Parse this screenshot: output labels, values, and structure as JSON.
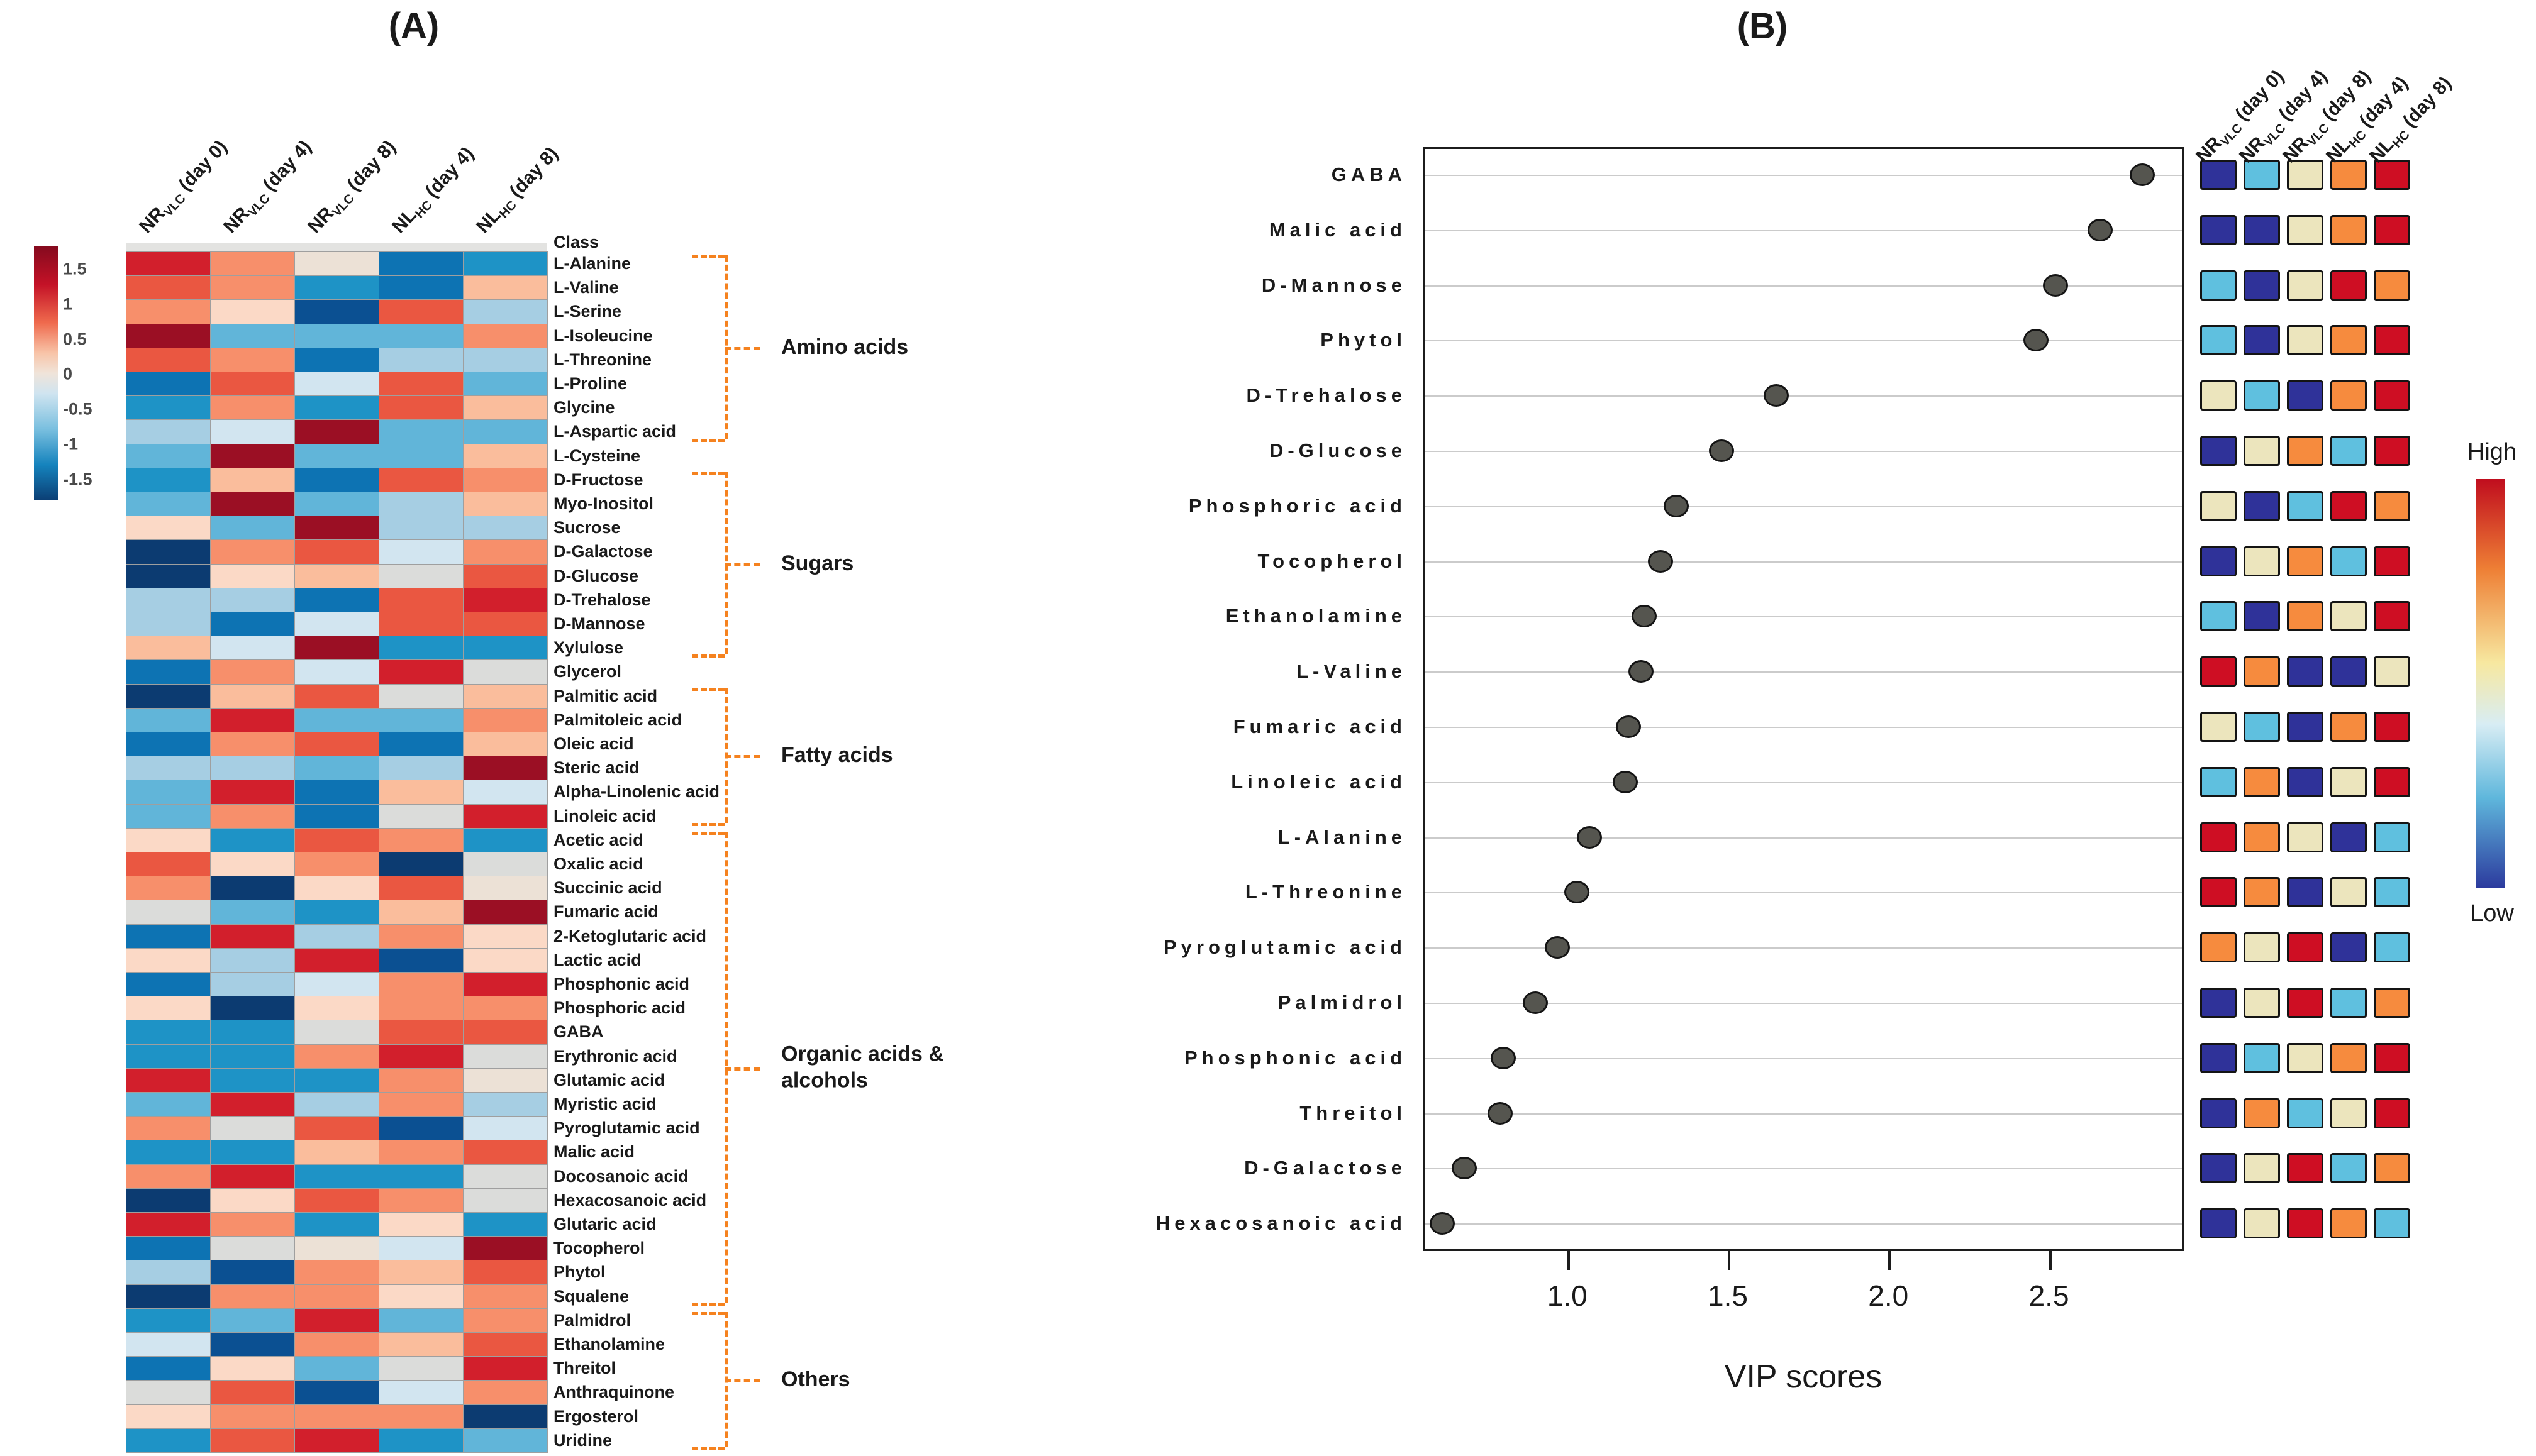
{
  "chart_data": [
    {
      "type": "heatmap",
      "title": "(A)",
      "columns": [
        {
          "prefix": "NR",
          "sub": "VLC",
          "day": "(day 0)"
        },
        {
          "prefix": "NR",
          "sub": "VLC",
          "day": "(day 4)"
        },
        {
          "prefix": "NR",
          "sub": "VLC",
          "day": "(day 8)"
        },
        {
          "prefix": "NL",
          "sub": "HC",
          "day": "(day 4)"
        },
        {
          "prefix": "NL",
          "sub": "HC",
          "day": "(day 8)"
        }
      ],
      "class_row_label": "Class",
      "colorbar_ticks": [
        "1.5",
        "1",
        "0.5",
        "0",
        "-0.5",
        "-1",
        "-1.5"
      ],
      "colorbar_range": [
        1.5,
        -1.5
      ],
      "palette": {
        "M": "#9b0f24",
        "R": "#d21f2c",
        "O": "#ea5741",
        "S": "#f78f6b",
        "P": "#fabd9c",
        "Q": "#fbd9c6",
        "C": "#ece1d6",
        "G": "#dbdcda",
        "U": "#d2e5f0",
        "L": "#a6cee3",
        "K": "#61b5d9",
        "T": "#1e93c6",
        "B": "#0d73b3",
        "D": "#0b5092",
        "N": "#0c3b71"
      },
      "rows": [
        {
          "name": "L-Alanine",
          "cells": "RSCBT"
        },
        {
          "name": "L-Valine",
          "cells": "OSTBP"
        },
        {
          "name": "L-Serine",
          "cells": "SQDOL"
        },
        {
          "name": "L-Isoleucine",
          "cells": "MKKKS"
        },
        {
          "name": "L-Threonine",
          "cells": "OSBLL"
        },
        {
          "name": "L-Proline",
          "cells": "BOUOK"
        },
        {
          "name": "Glycine",
          "cells": "TSTOP"
        },
        {
          "name": "L-Aspartic acid",
          "cells": "LUMKK"
        },
        {
          "name": "L-Cysteine",
          "cells": "KMKKP"
        },
        {
          "name": "D-Fructose",
          "cells": "TPBOS"
        },
        {
          "name": "Myo-Inositol",
          "cells": "KMKLP"
        },
        {
          "name": "Sucrose",
          "cells": "QKMLL"
        },
        {
          "name": "D-Galactose",
          "cells": "NSOUS"
        },
        {
          "name": "D-Glucose",
          "cells": "NQPGO"
        },
        {
          "name": "D-Trehalose",
          "cells": "LLBOR"
        },
        {
          "name": "D-Mannose",
          "cells": "LBUOO"
        },
        {
          "name": "Xylulose",
          "cells": "PUMTT"
        },
        {
          "name": "Glycerol",
          "cells": "BSURG"
        },
        {
          "name": "Palmitic acid",
          "cells": "NPOGP"
        },
        {
          "name": "Palmitoleic acid",
          "cells": "KRKKS"
        },
        {
          "name": "Oleic acid",
          "cells": "BSOBP"
        },
        {
          "name": "Steric acid",
          "cells": "LLKLM"
        },
        {
          "name": "Alpha-Linolenic acid",
          "cells": "KRBPU"
        },
        {
          "name": "Linoleic acid",
          "cells": "KSBGR"
        },
        {
          "name": "Acetic acid",
          "cells": "QTOST"
        },
        {
          "name": "Oxalic acid",
          "cells": "OQSNG"
        },
        {
          "name": "Succinic acid",
          "cells": "SNQOC"
        },
        {
          "name": "Fumaric acid",
          "cells": "GKTPM"
        },
        {
          "name": "2-Ketoglutaric acid",
          "cells": "BRLSQ"
        },
        {
          "name": "Lactic acid",
          "cells": "QLRDQ"
        },
        {
          "name": "Phosphonic acid",
          "cells": "BLUSR"
        },
        {
          "name": "Phosphoric acid",
          "cells": "QNQSS"
        },
        {
          "name": "GABA",
          "cells": "TTGOO"
        },
        {
          "name": "Erythronic acid",
          "cells": "TTSRG"
        },
        {
          "name": "Glutamic acid",
          "cells": "RTTSC"
        },
        {
          "name": "Myristic acid",
          "cells": "KRLSL"
        },
        {
          "name": "Pyroglutamic acid",
          "cells": "SGODU"
        },
        {
          "name": "Malic acid",
          "cells": "TTPSO"
        },
        {
          "name": "Docosanoic acid",
          "cells": "SRTTG"
        },
        {
          "name": "Hexacosanoic acid",
          "cells": "NQOSG"
        },
        {
          "name": "Glutaric acid",
          "cells": "RSTQT"
        },
        {
          "name": "Tocopherol",
          "cells": "BGCUM"
        },
        {
          "name": "Phytol",
          "cells": "LDSPO"
        },
        {
          "name": "Squalene",
          "cells": "NSSQS"
        },
        {
          "name": "Palmidrol",
          "cells": "TKRKS"
        },
        {
          "name": "Ethanolamine",
          "cells": "UDSPO"
        },
        {
          "name": "Threitol",
          "cells": "BQKGR"
        },
        {
          "name": "Anthraquinone",
          "cells": "GODUS"
        },
        {
          "name": "Ergosterol",
          "cells": "QSSSN"
        },
        {
          "name": "Uridine",
          "cells": "TORTK"
        }
      ],
      "groups": [
        {
          "label": "Amino acids",
          "start": 1,
          "end": 8
        },
        {
          "label": "Sugars",
          "start": 10,
          "end": 17
        },
        {
          "label": "Fatty acids",
          "start": 19,
          "end": 24
        },
        {
          "label": "Organic acids & alcohols",
          "start": 25,
          "end": 44
        },
        {
          "label": "Others",
          "start": 45,
          "end": 50
        }
      ]
    },
    {
      "type": "dot_plot",
      "title": "(B)",
      "xlabel": "VIP scores",
      "xticks": [
        1.0,
        1.5,
        2.0,
        2.5
      ],
      "xtick_labels": [
        "1.0",
        "1.5",
        "2.0",
        "2.5"
      ],
      "xlim": [
        0.55,
        2.92
      ],
      "columns": [
        {
          "prefix": "NR",
          "sub": "VLC",
          "day": "(day 0)"
        },
        {
          "prefix": "NR",
          "sub": "VLC",
          "day": "(day 4)"
        },
        {
          "prefix": "NR",
          "sub": "VLC",
          "day": "(day 8)"
        },
        {
          "prefix": "NL",
          "sub": "HC",
          "day": "(day 4)"
        },
        {
          "prefix": "NL",
          "sub": "HC",
          "day": "(day 8)"
        }
      ],
      "legend": {
        "high": "High",
        "low": "Low"
      },
      "palette": {
        "N": "#2f3299",
        "S": "#5fc0df",
        "C": "#ece5bd",
        "O": "#f68b3e",
        "R": "#ce0e23"
      },
      "rows": [
        {
          "name": "GABA",
          "vip": 2.79,
          "cells": "NSCOR"
        },
        {
          "name": "Malic acid",
          "vip": 2.66,
          "cells": "NNCOR"
        },
        {
          "name": "D-Mannose",
          "vip": 2.52,
          "cells": "SNCRO"
        },
        {
          "name": "Phytol",
          "vip": 2.46,
          "cells": "SNCOR"
        },
        {
          "name": "D-Trehalose",
          "vip": 1.65,
          "cells": "CSNOR"
        },
        {
          "name": "D-Glucose",
          "vip": 1.48,
          "cells": "NCOSR"
        },
        {
          "name": "Phosphoric acid",
          "vip": 1.34,
          "cells": "CNSRO"
        },
        {
          "name": "Tocopherol",
          "vip": 1.29,
          "cells": "NCOSR"
        },
        {
          "name": "Ethanolamine",
          "vip": 1.24,
          "cells": "SNOCR"
        },
        {
          "name": "L-Valine",
          "vip": 1.23,
          "cells": "RONNC"
        },
        {
          "name": "Fumaric acid",
          "vip": 1.19,
          "cells": "CSNOR"
        },
        {
          "name": "Linoleic acid",
          "vip": 1.18,
          "cells": "SONCR"
        },
        {
          "name": "L-Alanine",
          "vip": 1.07,
          "cells": "ROCNS"
        },
        {
          "name": "L-Threonine",
          "vip": 1.03,
          "cells": "RONCS"
        },
        {
          "name": "Pyroglutamic acid",
          "vip": 0.97,
          "cells": "OCRNS"
        },
        {
          "name": "Palmidrol",
          "vip": 0.9,
          "cells": "NCRSO"
        },
        {
          "name": "Phosphonic acid",
          "vip": 0.8,
          "cells": "NSCOR"
        },
        {
          "name": "Threitol",
          "vip": 0.79,
          "cells": "NOSCR"
        },
        {
          "name": "D-Galactose",
          "vip": 0.68,
          "cells": "NCRSO"
        },
        {
          "name": "Hexacosanoic acid",
          "vip": 0.61,
          "cells": "NCROS"
        }
      ]
    }
  ]
}
